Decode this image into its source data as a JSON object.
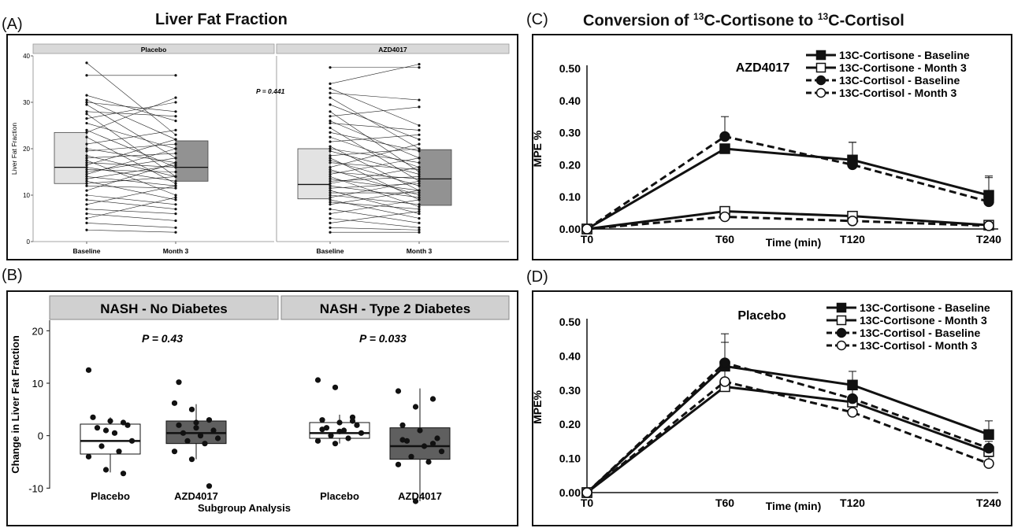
{
  "figure": {
    "panel_a_label": "(A)",
    "panel_b_label": "(B)",
    "panel_c_label": "(C)",
    "panel_d_label": "(D)",
    "panel_a_title": "Liver Fat Fraction",
    "panel_c_title_pre": "Conversion of ",
    "panel_c_title_sup1": "13",
    "panel_c_title_mid": "C-Cortisone to ",
    "panel_c_title_sup2": "13",
    "panel_c_title_post": "C-Cortisol"
  },
  "chart_data": [
    {
      "id": "A",
      "type": "box",
      "facets": [
        "Placebo",
        "AZD4017"
      ],
      "categories": [
        "Baseline",
        "Month 3"
      ],
      "ylabel": "Liver Fat Fraction",
      "ylim": [
        0,
        40
      ],
      "yticks": [
        0,
        10,
        20,
        30,
        40
      ],
      "annotation": "P = 0.441",
      "colors": {
        "baseline": "#d9d9d9",
        "month3": "#6e6e6e",
        "strip": "#d9d9d9"
      },
      "boxes": [
        {
          "facet": "Placebo",
          "category": "Baseline",
          "q1": 12.5,
          "median": 16.0,
          "q3": 23.5,
          "min": 2.5,
          "max": 38.5
        },
        {
          "facet": "Placebo",
          "category": "Month 3",
          "q1": 13.0,
          "median": 16.0,
          "q3": 21.7,
          "min": 2.0,
          "max": 35.8
        },
        {
          "facet": "AZD4017",
          "category": "Baseline",
          "q1": 9.2,
          "median": 12.3,
          "q3": 20.0,
          "min": 2.0,
          "max": 37.5
        },
        {
          "facet": "AZD4017",
          "category": "Month 3",
          "q1": 7.8,
          "median": 13.5,
          "q3": 19.8,
          "min": 2.0,
          "max": 39.2
        }
      ],
      "pairs": {
        "Placebo": [
          [
            38.5,
            23
          ],
          [
            35.8,
            35.8
          ],
          [
            31.5,
            26
          ],
          [
            30.5,
            22
          ],
          [
            30,
            28
          ],
          [
            29.5,
            18
          ],
          [
            28,
            27
          ],
          [
            27.5,
            14
          ],
          [
            26.5,
            30
          ],
          [
            25.5,
            20
          ],
          [
            24,
            16
          ],
          [
            23.5,
            31
          ],
          [
            22.5,
            12.5
          ],
          [
            21,
            24
          ],
          [
            20,
            17
          ],
          [
            19.5,
            21
          ],
          [
            18.5,
            14
          ],
          [
            18,
            19
          ],
          [
            17.5,
            10
          ],
          [
            17,
            16
          ],
          [
            16.5,
            22
          ],
          [
            16,
            13
          ],
          [
            15.5,
            15
          ],
          [
            15,
            18
          ],
          [
            14.5,
            20
          ],
          [
            14,
            12
          ],
          [
            13.5,
            16.5
          ],
          [
            13,
            9
          ],
          [
            12.5,
            14
          ],
          [
            12,
            11.5
          ],
          [
            11,
            17
          ],
          [
            10,
            8
          ],
          [
            9,
            7
          ],
          [
            8,
            12
          ],
          [
            7,
            6
          ],
          [
            6,
            4.5
          ],
          [
            5,
            9.5
          ],
          [
            4,
            3
          ],
          [
            2.5,
            2
          ]
        ],
        "AZD4017": [
          [
            37.5,
            37.5
          ],
          [
            34,
            38.2
          ],
          [
            33,
            25
          ],
          [
            32,
            30.5
          ],
          [
            31,
            20
          ],
          [
            29.5,
            22
          ],
          [
            28,
            15
          ],
          [
            27,
            29
          ],
          [
            26,
            18
          ],
          [
            25.5,
            24
          ],
          [
            24.5,
            13
          ],
          [
            23.5,
            19.5
          ],
          [
            22.5,
            16
          ],
          [
            21.5,
            23
          ],
          [
            20.5,
            11
          ],
          [
            20,
            17
          ],
          [
            19.5,
            14.5
          ],
          [
            18.5,
            20
          ],
          [
            18,
            9
          ],
          [
            17.5,
            12
          ],
          [
            17,
            15.5
          ],
          [
            16,
            21
          ],
          [
            15.5,
            10
          ],
          [
            15,
            13.5
          ],
          [
            14.5,
            18
          ],
          [
            14,
            7.5
          ],
          [
            13.5,
            11
          ],
          [
            13,
            14
          ],
          [
            12.5,
            16
          ],
          [
            12,
            9.5
          ],
          [
            11.5,
            12.5
          ],
          [
            11,
            6
          ],
          [
            10.5,
            10.5
          ],
          [
            10,
            8
          ],
          [
            9.5,
            13
          ],
          [
            9,
            5
          ],
          [
            8.5,
            7
          ],
          [
            8,
            11
          ],
          [
            7,
            4
          ],
          [
            6,
            9
          ],
          [
            5,
            3
          ],
          [
            4,
            6.5
          ],
          [
            3,
            2.5
          ],
          [
            2,
            2
          ]
        ]
      }
    },
    {
      "id": "B",
      "type": "box",
      "facets": [
        "NASH - No Diabetes",
        "NASH - Type 2 Diabetes"
      ],
      "categories": [
        "Placebo",
        "AZD4017",
        "Placebo",
        "AZD4017"
      ],
      "xlabel": "Subgroup Analysis",
      "ylabel": "Change in Liver Fat Fraction",
      "ylim": [
        -14,
        22
      ],
      "yticks": [
        -10,
        0,
        10,
        20
      ],
      "annotations": [
        "P = 0.43",
        "P = 0.033"
      ],
      "colors": {
        "placebo": "#ffffff",
        "azd": "#5f5f5f",
        "strip": "#d0d0d0"
      },
      "boxes": [
        {
          "facet": "NASH - No Diabetes",
          "category": "Placebo",
          "q1": -3.5,
          "median": -1.0,
          "q3": 2.2,
          "min": -7.0,
          "max": 3.5
        },
        {
          "facet": "NASH - No Diabetes",
          "category": "AZD4017",
          "q1": -1.5,
          "median": 0.5,
          "q3": 2.8,
          "min": -4.5,
          "max": 6.0
        },
        {
          "facet": "NASH - Type 2 Diabetes",
          "category": "Placebo",
          "q1": -0.5,
          "median": 0.5,
          "q3": 2.5,
          "min": -1.5,
          "max": 4.0
        },
        {
          "facet": "NASH - Type 2 Diabetes",
          "category": "AZD4017",
          "q1": -4.5,
          "median": -2.0,
          "q3": 1.5,
          "min": -12.5,
          "max": 9.0
        }
      ],
      "points": [
        [
          12.5,
          -6.5,
          -7.2,
          3.5,
          2.8,
          2.0,
          1.5,
          0.5,
          -1.0,
          -2.0,
          -3.0,
          -4.0,
          1.0,
          2.5
        ],
        [
          6.2,
          5.0,
          3.0,
          2.0,
          1.5,
          1.0,
          0.5,
          0.0,
          -0.5,
          -1.0,
          -1.5,
          -3.0,
          -4.5,
          -9.6,
          10.2,
          2.5
        ],
        [
          10.6,
          9.2,
          3.5,
          3.0,
          2.5,
          2.0,
          1.5,
          1.0,
          0.5,
          0.0,
          -0.5,
          -1.0,
          -1.5,
          2.8,
          1.2,
          0.8
        ],
        [
          8.5,
          5.5,
          7.0,
          2.0,
          1.0,
          -0.5,
          -1.0,
          -2.0,
          -3.0,
          -4.0,
          -5.0,
          -5.5,
          -12.5,
          -1.5,
          -0.8
        ]
      ]
    },
    {
      "id": "C",
      "type": "line",
      "title": "AZD4017",
      "x": [
        "T0",
        "T60",
        "T120",
        "T240"
      ],
      "xlabel": "Time (min)",
      "ylabel": "MPE %",
      "ylim": [
        0,
        0.5
      ],
      "yticks": [
        "0.00",
        "0.10",
        "0.20",
        "0.30",
        "0.40",
        "0.50"
      ],
      "legend_position": "top-right",
      "series": [
        {
          "name": "13C-Cortisone - Baseline",
          "values": [
            0,
            0.25,
            0.215,
            0.105
          ],
          "err": [
            0,
            0.0,
            0.055,
            0.06
          ],
          "marker": "filled-square",
          "dash": false
        },
        {
          "name": "13C-Cortisone - Month 3",
          "values": [
            0,
            0.055,
            0.04,
            0.012
          ],
          "err": [
            0,
            0,
            0,
            0
          ],
          "marker": "open-square",
          "dash": false
        },
        {
          "name": "13C-Cortisol - Baseline",
          "values": [
            0,
            0.288,
            0.2,
            0.085
          ],
          "err": [
            0,
            0.062,
            0.07,
            0.075
          ],
          "marker": "filled-circle",
          "dash": true
        },
        {
          "name": "13C-Cortisol - Month 3",
          "values": [
            0,
            0.038,
            0.025,
            0.01
          ],
          "err": [
            0,
            0,
            0,
            0
          ],
          "marker": "open-circle",
          "dash": true
        }
      ]
    },
    {
      "id": "D",
      "type": "line",
      "title": "Placebo",
      "x": [
        "T0",
        "T60",
        "T120",
        "T240"
      ],
      "xlabel": "Time (min)",
      "ylabel": "MPE%",
      "ylim": [
        0,
        0.5
      ],
      "yticks": [
        "0.00",
        "0.10",
        "0.20",
        "0.30",
        "0.40",
        "0.50"
      ],
      "legend_position": "top-right",
      "series": [
        {
          "name": "13C-Cortisone - Baseline",
          "values": [
            0,
            0.37,
            0.315,
            0.17
          ],
          "err": [
            0,
            0.095,
            0.04,
            0.04
          ],
          "marker": "filled-square",
          "dash": false
        },
        {
          "name": "13C-Cortisone - Month 3",
          "values": [
            0,
            0.31,
            0.265,
            0.12
          ],
          "err": [
            0,
            0.05,
            0.02,
            0.02
          ],
          "marker": "open-square",
          "dash": false
        },
        {
          "name": "13C-Cortisol - Baseline",
          "values": [
            0,
            0.38,
            0.275,
            0.13
          ],
          "err": [
            0,
            0.06,
            0.03,
            0.02
          ],
          "marker": "filled-circle",
          "dash": true
        },
        {
          "name": "13C-Cortisol - Month 3",
          "values": [
            0,
            0.325,
            0.235,
            0.085
          ],
          "err": [
            0,
            0.05,
            0.02,
            0.02
          ],
          "marker": "open-circle",
          "dash": true
        }
      ]
    }
  ]
}
